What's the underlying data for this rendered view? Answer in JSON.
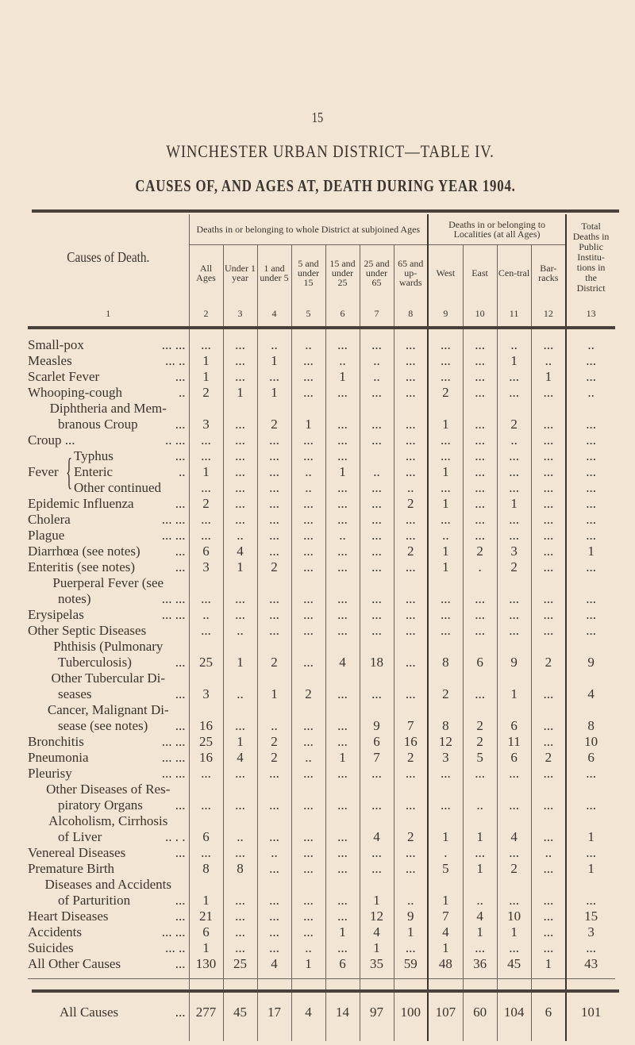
{
  "page_number": "15",
  "title": "WINCHESTER URBAN DISTRICT—TABLE IV.",
  "subtitle": "CAUSES OF, AND AGES AT, DEATH DURING YEAR 1904.",
  "header": {
    "cause": "Causes of Death.",
    "group_ages": "Deaths in or belonging to whole District at subjoined Ages",
    "group_localities": "Deaths in or belonging to Localities (at all Ages)",
    "total": "Total Deaths in Public Institu-tions in the District",
    "columns": [
      "All Ages",
      "Under 1 year",
      "1 and under 5",
      "5 and under 15",
      "15 and under 25",
      "25 and under 65",
      "65 and up-wards",
      "West",
      "East",
      "Cen-tral",
      "Bar-racks"
    ],
    "numbers": [
      "1",
      "2",
      "3",
      "4",
      "5",
      "6",
      "7",
      "8",
      "9",
      "10",
      "11",
      "12",
      "13"
    ]
  },
  "fever_label": "Fever",
  "rows": [
    {
      "lines": [
        "Small-pox"
      ],
      "lead": "... ...",
      "values": [
        "...",
        "...",
        "..",
        "..",
        "...",
        "...",
        "...",
        "...",
        "...",
        "..",
        "...",
        ".."
      ]
    },
    {
      "lines": [
        "Measles"
      ],
      "lead": "... ..",
      "values": [
        "1",
        "...",
        "1",
        "...",
        "..",
        "..",
        "...",
        "...",
        "...",
        "1",
        "..",
        "..."
      ]
    },
    {
      "lines": [
        "Scarlet Fever"
      ],
      "lead": "...",
      "values": [
        "1",
        "...",
        "...",
        "...",
        "1",
        "..",
        "...",
        "...",
        "...",
        "...",
        "1",
        "..."
      ]
    },
    {
      "lines": [
        "Whooping-cough"
      ],
      "lead": "..",
      "values": [
        "2",
        "1",
        "1",
        "...",
        "...",
        "...",
        "...",
        "2",
        "...",
        "...",
        "...",
        ".."
      ]
    },
    {
      "lines": [
        "Diphtheria and Mem-",
        "branous Croup"
      ],
      "lead": "...",
      "values": [
        "3",
        "...",
        "2",
        "1",
        "...",
        "...",
        "...",
        "1",
        "...",
        "2",
        "...",
        "..."
      ]
    },
    {
      "lines": [
        "Croup ..."
      ],
      "lead": ".. ...",
      "values": [
        "...",
        "...",
        "...",
        "...",
        "...",
        "...",
        "...",
        "...",
        "...",
        "..",
        "...",
        "..."
      ]
    },
    {
      "lines": [
        "Typhus"
      ],
      "lead": "...",
      "fever": true,
      "values": [
        "...",
        "...",
        "...",
        "...",
        "...",
        "",
        "...",
        "...",
        "...",
        "...",
        "...",
        "..."
      ]
    },
    {
      "lines": [
        "Enteric"
      ],
      "lead": "..",
      "fever": true,
      "fever_mid": true,
      "values": [
        "1",
        "...",
        "...",
        "..",
        "1",
        "..",
        "...",
        "1",
        "...",
        "...",
        "...",
        "..."
      ]
    },
    {
      "lines": [
        "Other continued"
      ],
      "lead": "",
      "fever": true,
      "values": [
        "...",
        "...",
        "...",
        "..",
        "...",
        "...",
        "..",
        "...",
        "...",
        "...",
        "...",
        "..."
      ]
    },
    {
      "lines": [
        "Epidemic Influenza"
      ],
      "lead": "...",
      "values": [
        "2",
        "...",
        "...",
        "...",
        "...",
        "...",
        "2",
        "1",
        "...",
        "1",
        "...",
        "..."
      ]
    },
    {
      "lines": [
        "Cholera"
      ],
      "lead": "... ...",
      "values": [
        "...",
        "...",
        "...",
        "...",
        "...",
        "...",
        "...",
        "...",
        "...",
        "...",
        "...",
        "..."
      ]
    },
    {
      "lines": [
        "Plague"
      ],
      "lead": "... ...",
      "values": [
        "...",
        "..",
        "...",
        "...",
        "..",
        "...",
        "...",
        "..",
        "...",
        "...",
        "...",
        "..."
      ]
    },
    {
      "lines": [
        "Diarrhœa (see notes)"
      ],
      "lead": "...",
      "values": [
        "6",
        "4",
        "...",
        "...",
        "...",
        "...",
        "2",
        "1",
        "2",
        "3",
        "...",
        "1"
      ]
    },
    {
      "lines": [
        "Enteritis (see notes)"
      ],
      "lead": "...",
      "values": [
        "3",
        "1",
        "2",
        "...",
        "...",
        "...",
        "...",
        "1",
        ".",
        "2",
        "...",
        "..."
      ]
    },
    {
      "lines": [
        "Puerperal Fever (see",
        "notes)"
      ],
      "lead": "... ...",
      "values": [
        "...",
        "...",
        "...",
        "...",
        "...",
        "...",
        "...",
        "...",
        "...",
        "...",
        "...",
        "..."
      ]
    },
    {
      "lines": [
        "Erysipelas"
      ],
      "lead": "... ...",
      "values": [
        "..",
        "...",
        "...",
        "...",
        "...",
        "...",
        "...",
        "...",
        "...",
        "...",
        "...",
        "..."
      ]
    },
    {
      "lines": [
        "Other Septic Diseases"
      ],
      "lead": "",
      "values": [
        "...",
        "..",
        "...",
        "...",
        "...",
        "...",
        "...",
        "...",
        "...",
        "...",
        "...",
        "..."
      ]
    },
    {
      "lines": [
        "Phthisis (Pulmonary",
        "Tuberculosis)"
      ],
      "lead": "...",
      "values": [
        "25",
        "1",
        "2",
        "...",
        "4",
        "18",
        "...",
        "8",
        "6",
        "9",
        "2",
        "9"
      ]
    },
    {
      "lines": [
        "Other Tubercular Di-",
        "seases"
      ],
      "lead": "...",
      "values": [
        "3",
        "..",
        "1",
        "2",
        "...",
        "...",
        "...",
        "2",
        "...",
        "1",
        "...",
        "4"
      ]
    },
    {
      "lines": [
        "Cancer, Malignant Di-",
        "sease (see notes)"
      ],
      "lead": "...",
      "values": [
        "16",
        "...",
        "..",
        "...",
        "...",
        "9",
        "7",
        "8",
        "2",
        "6",
        "...",
        "8"
      ]
    },
    {
      "lines": [
        "Bronchitis"
      ],
      "lead": "... ...",
      "values": [
        "25",
        "1",
        "2",
        "...",
        "...",
        "6",
        "16",
        "12",
        "2",
        "11",
        "...",
        "10"
      ]
    },
    {
      "lines": [
        "Pneumonia"
      ],
      "lead": "... ...",
      "values": [
        "16",
        "4",
        "2",
        "..",
        "1",
        "7",
        "2",
        "3",
        "5",
        "6",
        "2",
        "6"
      ]
    },
    {
      "lines": [
        "Pleurisy"
      ],
      "lead": "... ...",
      "values": [
        "...",
        "...",
        "...",
        "...",
        "...",
        "...",
        "...",
        "...",
        "...",
        "...",
        "...",
        "..."
      ]
    },
    {
      "lines": [
        "Other Diseases of Res-",
        "piratory Organs"
      ],
      "lead": "...",
      "values": [
        "...",
        "...",
        "...",
        "...",
        "...",
        "...",
        "...",
        "...",
        "..",
        "...",
        "...",
        "..."
      ]
    },
    {
      "lines": [
        "Alcoholism, Cirrhosis",
        "of Liver"
      ],
      "lead": ".. . .",
      "values": [
        "6",
        "..",
        "...",
        "...",
        "...",
        "4",
        "2",
        "1",
        "1",
        "4",
        "...",
        "1"
      ]
    },
    {
      "lines": [
        "Venereal Diseases"
      ],
      "lead": "...",
      "values": [
        "...",
        "...",
        "..",
        "...",
        "...",
        "...",
        "...",
        ".",
        "...",
        "...",
        "..",
        "..."
      ]
    },
    {
      "lines": [
        "Premature Birth"
      ],
      "lead": "",
      "values": [
        "8",
        "8",
        "...",
        "...",
        "...",
        "...",
        "...",
        "5",
        "1",
        "2",
        "...",
        "1"
      ]
    },
    {
      "lines": [
        "Diseases and Accidents",
        "of Parturition"
      ],
      "lead": "...",
      "values": [
        "1",
        "...",
        "...",
        "...",
        "...",
        "1",
        "..",
        "1",
        "..",
        "...",
        "...",
        "..."
      ]
    },
    {
      "lines": [
        "Heart Diseases"
      ],
      "lead": "...",
      "values": [
        "21",
        "...",
        "...",
        "...",
        "...",
        "12",
        "9",
        "7",
        "4",
        "10",
        "...",
        "15"
      ]
    },
    {
      "lines": [
        "Accidents"
      ],
      "lead": "... ...",
      "values": [
        "6",
        "...",
        "...",
        "...",
        "1",
        "4",
        "1",
        "4",
        "1",
        "1",
        "...",
        "3"
      ]
    },
    {
      "lines": [
        "Suicides"
      ],
      "lead": "... ..",
      "values": [
        "1",
        "...",
        "...",
        "..",
        "...",
        "1",
        "...",
        "1",
        "...",
        "...",
        "...",
        "..."
      ]
    },
    {
      "lines": [
        "All Other Causes"
      ],
      "lead": "...",
      "values": [
        "130",
        "25",
        "4",
        "1",
        "6",
        "35",
        "59",
        "48",
        "36",
        "45",
        "1",
        "43"
      ]
    }
  ],
  "total_row": {
    "label": "All Causes",
    "lead": "...",
    "values": [
      "277",
      "45",
      "17",
      "4",
      "14",
      "97",
      "100",
      "107",
      "60",
      "104",
      "6",
      "101"
    ]
  }
}
